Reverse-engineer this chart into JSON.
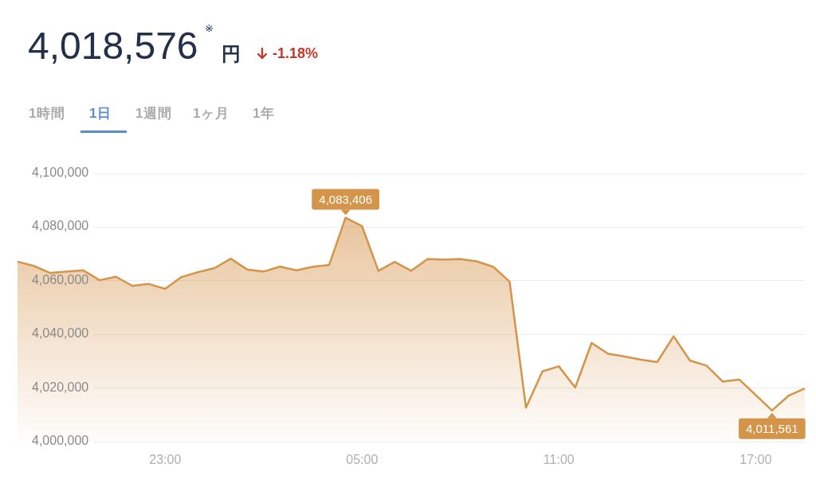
{
  "chart_data": {
    "type": "area",
    "title": "4,018,576",
    "annotations": [
      "※",
      "円",
      "-1.18%",
      "1時間",
      "1日",
      "1週間",
      "1ヶ月",
      "1年",
      {
        "text": "4,083,406",
        "y": 4083406
      },
      {
        "text": "4,011,561",
        "y": 4011561
      }
    ],
    "categories": [
      null,
      null,
      null,
      null,
      null,
      null,
      null,
      null,
      null,
      "23:00",
      null,
      null,
      null,
      null,
      null,
      null,
      null,
      null,
      null,
      null,
      null,
      "05:00",
      null,
      null,
      null,
      null,
      null,
      null,
      null,
      null,
      null,
      null,
      null,
      "11:00",
      null,
      null,
      null,
      null,
      null,
      null,
      null,
      null,
      null,
      null,
      null,
      "17:00",
      null,
      null,
      null
    ],
    "series": [
      {
        "color": "#d4944a",
        "values": [
          4067000,
          4065400,
          4062800,
          4063300,
          4063800,
          4060100,
          4061400,
          4058000,
          4058700,
          4056900,
          4061300,
          4063100,
          4064600,
          4068100,
          4064100,
          4063300,
          4065200,
          4063800,
          4065100,
          4065800,
          4083406,
          4080300,
          4063600,
          4066900,
          4063600,
          4068000,
          4067800,
          4068000,
          4067100,
          4065100,
          4059600,
          4012600,
          4026100,
          4028000,
          4020100,
          4036700,
          4032700,
          4031700,
          4030500,
          4029600,
          4039200,
          4030100,
          4028300,
          4022300,
          4023100,
          4017300,
          4011561,
          4017000,
          4019800
        ]
      }
    ],
    "ylim": [
      4000000,
      4100000
    ],
    "yticks": [
      {
        "value": 4000000,
        "label": "4,000,000"
      },
      {
        "value": 4020000,
        "label": "4,020,000"
      },
      {
        "value": 4040000,
        "label": "4,040,000"
      },
      {
        "value": 4060000,
        "label": "4,060,000"
      },
      {
        "value": 4080000,
        "label": "4,080,000"
      },
      {
        "value": 4100000,
        "label": "4,100,000"
      }
    ],
    "grid": "y",
    "legend": false,
    "marker": "none",
    "line_style": "solid"
  }
}
